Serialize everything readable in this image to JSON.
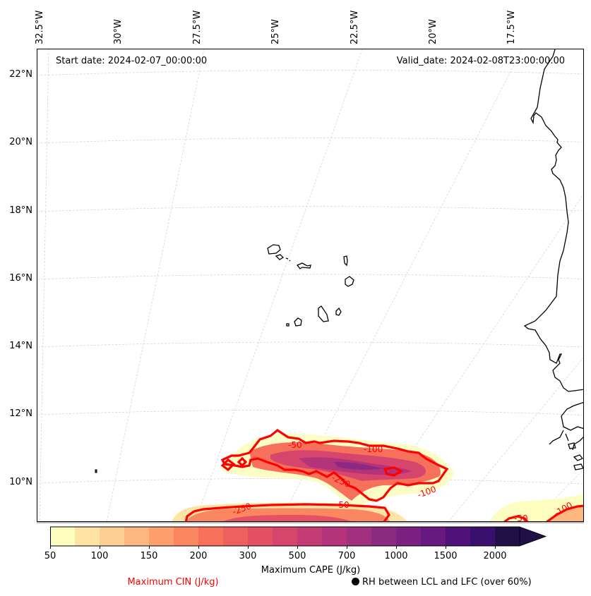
{
  "map": {
    "projection": "Lambert Conformal",
    "annotations": {
      "start_date": "Start date: 2024-02-07_00:00:00",
      "valid_date": "Valid_date: 2024-02-08T23:00:00.00"
    },
    "longitude_ticks": [
      "32.5°W",
      "30°W",
      "27.5°W",
      "25°W",
      "22.5°W",
      "20°W",
      "17.5°W"
    ],
    "latitude_ticks": [
      "22°N",
      "20°N",
      "18°N",
      "16°N",
      "14°N",
      "12°N",
      "10°N"
    ],
    "extent": {
      "lon_min": -32.5,
      "lon_max": -15.5,
      "lat_min": 9.0,
      "lat_max": 22.5
    },
    "features": {
      "coastline": "West Africa (Mauritania, Senegal, Gambia, Guinea-Bissau, Guinea)",
      "islands": "Cape Verde"
    },
    "cin_contour_labels": [
      "-50",
      "-100",
      "-250",
      "-50",
      "-100",
      "-250",
      "-50",
      "-100",
      "-250",
      "-50",
      "-100"
    ],
    "gridlines": true
  },
  "colorbar": {
    "label": "Maximum CAPE (J/kg)",
    "tick_labels": [
      "50",
      "100",
      "150",
      "200",
      "300",
      "500",
      "700",
      "1000",
      "1500",
      "2000"
    ],
    "levels": [
      50,
      75,
      100,
      125,
      150,
      175,
      200,
      250,
      300,
      400,
      500,
      600,
      700,
      850,
      1000,
      1250,
      1500,
      1750,
      2000
    ],
    "colors": [
      "#fcfdbf",
      "#fde4a5",
      "#fecf92",
      "#feb77e",
      "#fe9f6d",
      "#fb8761",
      "#f7705c",
      "#ee605e",
      "#e55064",
      "#d6456c",
      "#c43c75",
      "#b3347a",
      "#a1307e",
      "#8c2981",
      "#7a2182",
      "#661a80",
      "#4f127b",
      "#3a0f6e",
      "#1f1147"
    ],
    "extend": "max"
  },
  "legend": {
    "cin_label": "Maximum CIN (J/kg)",
    "cin_color": "#ff0000",
    "rh_label": "RH between LCL and LFC (over 60%)"
  }
}
